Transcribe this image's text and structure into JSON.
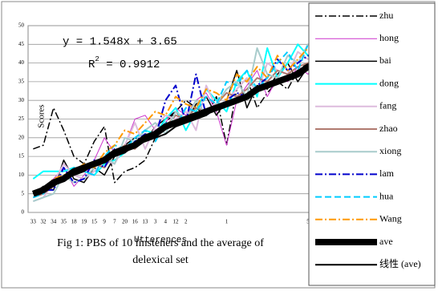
{
  "chart_data": {
    "type": "line",
    "categories": [
      "33",
      "32",
      "34",
      "35",
      "18",
      "19",
      "15",
      "9",
      "7",
      "20",
      "16",
      "13",
      "3",
      "4",
      "12",
      "2",
      null,
      null,
      null,
      "1",
      null,
      null,
      null,
      null,
      null,
      null,
      null,
      "5",
      null
    ],
    "x_label": "Utterences",
    "y_label": "Scores",
    "annotations": [
      "y = 1.548x + 3.65",
      "R",
      "2",
      " = 0.9912"
    ],
    "caption": [
      "Fig 1: PBS of 10 linsteners and the average of",
      "delexical set"
    ],
    "ylim": [
      0,
      50
    ],
    "yticks": [
      0,
      5,
      10,
      15,
      20,
      25,
      30,
      35,
      40,
      45,
      50
    ],
    "grid": true,
    "series": [
      {
        "name": "zhu",
        "color": "#000000",
        "dash": "9,3,2,3",
        "width": 1.5,
        "values": [
          17,
          18,
          28,
          22,
          15,
          13,
          19,
          23,
          8,
          11,
          12,
          14,
          20,
          24,
          27,
          30,
          28,
          26,
          31,
          18,
          33,
          36,
          28,
          32,
          35,
          33,
          38,
          40,
          37
        ]
      },
      {
        "name": "hong",
        "color": "#cc33cc",
        "dash": "",
        "width": 1,
        "values": [
          4,
          6,
          9,
          12,
          7,
          10,
          14,
          20,
          16,
          18,
          25,
          26,
          22,
          24,
          28,
          26,
          30,
          32,
          27,
          18,
          30,
          34,
          38,
          31,
          36,
          35,
          39,
          37,
          41
        ]
      },
      {
        "name": "bai",
        "color": "#000000",
        "dash": "",
        "width": 1.5,
        "values": [
          5,
          7,
          6,
          14,
          9,
          8,
          12,
          10,
          15,
          18,
          20,
          19,
          23,
          25,
          27,
          24,
          29,
          31,
          26,
          30,
          38,
          28,
          34,
          33,
          37,
          40,
          35,
          39,
          42
        ]
      },
      {
        "name": "dong",
        "color": "#00ffff",
        "dash": "",
        "width": 2,
        "values": [
          9,
          11,
          11,
          11,
          12,
          11,
          10,
          13,
          14,
          16,
          19,
          22,
          21,
          25,
          28,
          22,
          27,
          33,
          30,
          27,
          35,
          38,
          31,
          44,
          36,
          40,
          45,
          42,
          39
        ]
      },
      {
        "name": "fang",
        "color": "#ddbbdd",
        "dash": "",
        "width": 2,
        "values": [
          3,
          4,
          8,
          13,
          10,
          9,
          11,
          14,
          13,
          18,
          24,
          17,
          23,
          26,
          25,
          27,
          22,
          34,
          28,
          30,
          33,
          36,
          32,
          40,
          38,
          37,
          43,
          41,
          44
        ]
      },
      {
        "name": "zhao",
        "color": "#b07a70",
        "dash": "",
        "width": 2,
        "values": [
          4,
          5,
          7,
          9,
          10,
          12,
          13,
          12,
          16,
          18,
          17,
          21,
          20,
          23,
          26,
          25,
          28,
          27,
          29,
          32,
          31,
          33,
          36,
          35,
          38,
          37,
          39,
          40,
          42
        ]
      },
      {
        "name": "xiong",
        "color": "#a8cccc",
        "dash": "",
        "width": 2,
        "values": [
          3,
          4,
          5,
          10,
          8,
          9,
          12,
          15,
          13,
          20,
          19,
          22,
          24,
          21,
          27,
          25,
          30,
          26,
          29,
          33,
          35,
          31,
          44,
          37,
          36,
          42,
          40,
          45,
          43
        ]
      },
      {
        "name": "lam",
        "color": "#0000cc",
        "dash": "9,3,2,3",
        "width": 2,
        "values": [
          5,
          6,
          6,
          12,
          8,
          9,
          14,
          12,
          17,
          16,
          19,
          21,
          20,
          30,
          34,
          24,
          37,
          26,
          28,
          30,
          32,
          31,
          34,
          36,
          41,
          38,
          40,
          42,
          41
        ]
      },
      {
        "name": "hua",
        "color": "#00ccff",
        "dash": "8,4",
        "width": 2,
        "values": [
          4,
          5,
          8,
          9,
          12,
          11,
          10,
          15,
          18,
          17,
          20,
          22,
          19,
          24,
          23,
          28,
          27,
          31,
          29,
          35,
          34,
          38,
          33,
          36,
          40,
          43,
          38,
          45,
          44
        ]
      },
      {
        "name": "Wang",
        "color": "#ff9900",
        "dash": "9,3,2,3",
        "width": 2,
        "values": [
          5,
          6,
          9,
          10,
          11,
          13,
          12,
          16,
          18,
          22,
          21,
          24,
          27,
          26,
          31,
          29,
          28,
          33,
          32,
          30,
          37,
          35,
          39,
          36,
          42,
          38,
          41,
          44,
          43
        ]
      },
      {
        "name": "ave",
        "color": "#000000",
        "dash": "",
        "width": 8,
        "values": [
          5,
          6,
          8,
          9,
          11,
          12,
          13,
          14,
          16,
          17,
          18,
          20,
          21,
          23,
          24,
          25,
          26,
          27,
          28,
          29,
          30,
          31,
          33,
          34,
          35,
          36,
          37,
          39,
          40
        ]
      },
      {
        "name": "线性 (ave)",
        "color": "#000000",
        "dash": "",
        "width": 2,
        "values": [
          5,
          6,
          7,
          9,
          10,
          11,
          13,
          14,
          15,
          16,
          18,
          19,
          20,
          21,
          23,
          24,
          25,
          26,
          28,
          29,
          30,
          31,
          33,
          34,
          35,
          36,
          38,
          39,
          40
        ]
      }
    ]
  }
}
